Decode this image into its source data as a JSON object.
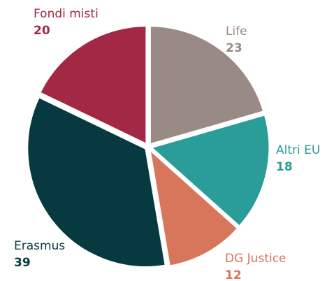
{
  "chart_data": {
    "type": "pie",
    "categories": [
      "Life",
      "Altri EU",
      "DG Justice",
      "Erasmus",
      "Fondi misti"
    ],
    "values": [
      23,
      18,
      12,
      39,
      20
    ],
    "colors": [
      "#9a8a85",
      "#2a9d99",
      "#d8765c",
      "#063a40",
      "#a22845"
    ]
  }
}
